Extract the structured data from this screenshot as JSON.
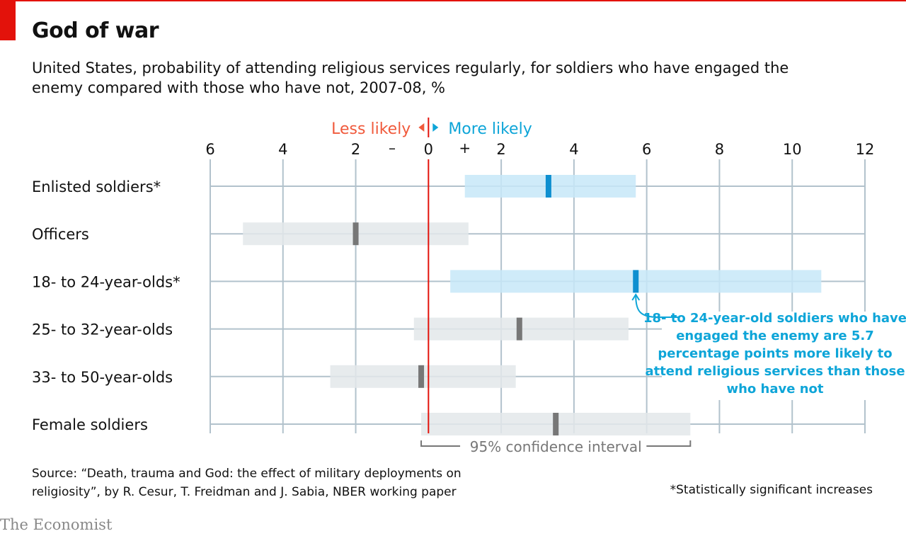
{
  "title": "God of war",
  "subtitle": "United States, probability of attending religious services regularly, for soldiers who have engaged the enemy compared with those who have not, 2007-08, %",
  "source": "Source: “Death, trauma and God: the effect of military deployments on religiosity”, by R. Cesur, T. Freidman and J. Sabia, NBER working paper",
  "footnote": "*Statistically significant increases",
  "logo": "The Economist",
  "chart_data": {
    "type": "range-dot",
    "direction_labels": {
      "less": "Less likely",
      "more": "More likely",
      "minus": "–",
      "plus": "+"
    },
    "xlim": [
      -6,
      12
    ],
    "ticks": [
      -6,
      -4,
      -2,
      0,
      2,
      4,
      6,
      8,
      10,
      12
    ],
    "tick_labels": [
      "6",
      "4",
      "2",
      "0",
      "2",
      "4",
      "6",
      "8",
      "10",
      "12"
    ],
    "grid": true,
    "colors": {
      "significant": "#0e8fd0",
      "significant_ci": "#c7e7f8",
      "other": "#777777",
      "other_ci": "#e3e7ea",
      "zero": "#e3120b",
      "less": "#f05a3c",
      "more": "#0ea5d8",
      "grid": "#b2c2cc"
    },
    "rows": [
      {
        "label": "Enlisted soldiers*",
        "value": 3.3,
        "ci": [
          1.0,
          5.7
        ],
        "significant": true
      },
      {
        "label": "Officers",
        "value": -2.0,
        "ci": [
          -5.1,
          1.1
        ],
        "significant": false
      },
      {
        "label": "18- to 24-year-olds*",
        "value": 5.7,
        "ci": [
          0.6,
          10.8
        ],
        "significant": true
      },
      {
        "label": "25- to 32-year-olds",
        "value": 2.5,
        "ci": [
          -0.4,
          5.5
        ],
        "significant": false
      },
      {
        "label": "33- to 50-year-olds",
        "value": -0.2,
        "ci": [
          -2.7,
          2.4
        ],
        "significant": false
      },
      {
        "label": "Female soldiers",
        "value": 3.5,
        "ci": [
          -0.2,
          7.2
        ],
        "significant": false
      }
    ],
    "ci_label": "95% confidence interval",
    "annotation": "18- to 24-year-old soldiers who have engaged the enemy are 5.7 percentage points more likely to attend religious services than those who have not"
  }
}
